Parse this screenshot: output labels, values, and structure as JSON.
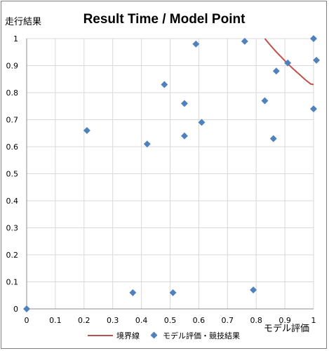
{
  "chart_data": {
    "type": "scatter",
    "title": "Result Time / Model Point",
    "ylabel": "走行結果",
    "xlabel": "モデル評価",
    "xlim": [
      0,
      1
    ],
    "ylim": [
      0,
      1
    ],
    "x_ticks": [
      "0",
      "0.1",
      "0.2",
      "0.3",
      "0.4",
      "0.5",
      "0.6",
      "0.7",
      "0.8",
      "0.9",
      "1"
    ],
    "y_ticks": [
      "0",
      "0.1",
      "0.2",
      "0.3",
      "0.4",
      "0.5",
      "0.6",
      "0.7",
      "0.8",
      "0.9",
      "1"
    ],
    "grid": true,
    "legend_position": "bottom",
    "series": [
      {
        "name": "境界線",
        "type": "line",
        "color": "#c0504d",
        "x": [
          0.83,
          0.85,
          0.87,
          0.89,
          0.91,
          0.93,
          0.95,
          0.97,
          0.99,
          1.0
        ],
        "y": [
          1.0,
          0.975,
          0.951,
          0.929,
          0.907,
          0.887,
          0.868,
          0.849,
          0.832,
          0.83
        ]
      },
      {
        "name": "モデル評価・競技結果",
        "type": "scatter",
        "color": "#4f81bd",
        "x": [
          0.0,
          0.21,
          0.37,
          0.42,
          0.48,
          0.51,
          0.55,
          0.55,
          0.59,
          0.61,
          0.76,
          0.79,
          0.83,
          0.86,
          0.87,
          0.91,
          1.0,
          1.0,
          1.01
        ],
        "y": [
          0.0,
          0.66,
          0.06,
          0.61,
          0.83,
          0.06,
          0.64,
          0.76,
          0.98,
          0.69,
          0.99,
          0.07,
          0.77,
          0.63,
          0.88,
          0.91,
          1.0,
          0.74,
          0.92
        ]
      }
    ]
  }
}
